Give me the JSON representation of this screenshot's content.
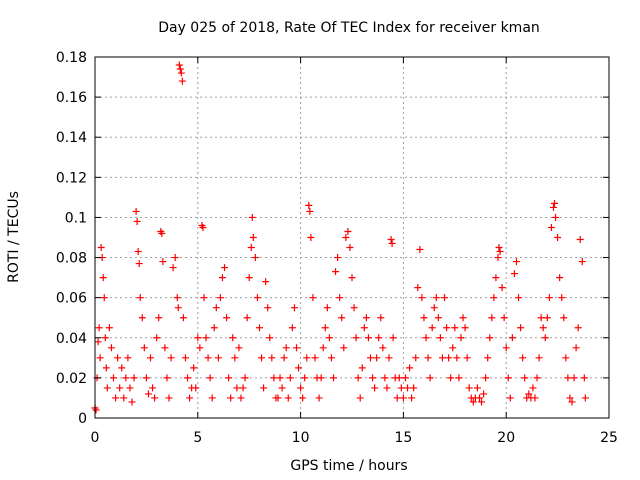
{
  "chart_data": {
    "type": "scatter",
    "title": "Day 025 of 2018, Rate Of TEC Index for receiver kman",
    "xlabel": "GPS time / hours",
    "ylabel": "ROTI / TECUs",
    "xlim": [
      0,
      25
    ],
    "ylim": [
      0,
      0.18
    ],
    "xticks": [
      0,
      5,
      10,
      15,
      20,
      25
    ],
    "xtick_labels": [
      "0",
      "5",
      "10",
      "15",
      "20",
      "25"
    ],
    "yticks": [
      0,
      0.02,
      0.04,
      0.06,
      0.08,
      0.1,
      0.12,
      0.14,
      0.16,
      0.18
    ],
    "ytick_labels": [
      "0",
      "0.02",
      "0.04",
      "0.06",
      "0.08",
      "0.1",
      "0.12",
      "0.14",
      "0.16",
      "0.18"
    ],
    "grid": true,
    "marker": "+",
    "color": "#ff0000",
    "series": [
      {
        "name": "ROTI",
        "points": [
          [
            0.0,
            0.005
          ],
          [
            0.05,
            0.004
          ],
          [
            0.1,
            0.02
          ],
          [
            0.15,
            0.038
          ],
          [
            0.2,
            0.045
          ],
          [
            0.25,
            0.03
          ],
          [
            0.3,
            0.085
          ],
          [
            0.35,
            0.08
          ],
          [
            0.4,
            0.07
          ],
          [
            0.45,
            0.06
          ],
          [
            0.5,
            0.04
          ],
          [
            0.55,
            0.025
          ],
          [
            0.6,
            0.015
          ],
          [
            0.7,
            0.045
          ],
          [
            0.8,
            0.035
          ],
          [
            0.9,
            0.02
          ],
          [
            1.0,
            0.01
          ],
          [
            1.1,
            0.03
          ],
          [
            1.2,
            0.015
          ],
          [
            1.3,
            0.025
          ],
          [
            1.4,
            0.01
          ],
          [
            1.5,
            0.02
          ],
          [
            1.6,
            0.03
          ],
          [
            1.7,
            0.015
          ],
          [
            1.8,
            0.008
          ],
          [
            1.9,
            0.02
          ],
          [
            2.0,
            0.103
          ],
          [
            2.05,
            0.098
          ],
          [
            2.1,
            0.083
          ],
          [
            2.15,
            0.077
          ],
          [
            2.2,
            0.06
          ],
          [
            2.3,
            0.05
          ],
          [
            2.4,
            0.035
          ],
          [
            2.5,
            0.02
          ],
          [
            2.6,
            0.012
          ],
          [
            2.7,
            0.03
          ],
          [
            2.8,
            0.015
          ],
          [
            2.9,
            0.01
          ],
          [
            3.0,
            0.04
          ],
          [
            3.1,
            0.05
          ],
          [
            3.2,
            0.093
          ],
          [
            3.25,
            0.092
          ],
          [
            3.3,
            0.078
          ],
          [
            3.4,
            0.035
          ],
          [
            3.5,
            0.02
          ],
          [
            3.6,
            0.01
          ],
          [
            3.7,
            0.03
          ],
          [
            3.8,
            0.075
          ],
          [
            3.9,
            0.08
          ],
          [
            4.0,
            0.06
          ],
          [
            4.05,
            0.055
          ],
          [
            4.1,
            0.176
          ],
          [
            4.15,
            0.174
          ],
          [
            4.2,
            0.172
          ],
          [
            4.25,
            0.168
          ],
          [
            4.3,
            0.05
          ],
          [
            4.4,
            0.03
          ],
          [
            4.5,
            0.02
          ],
          [
            4.6,
            0.01
          ],
          [
            4.7,
            0.015
          ],
          [
            4.8,
            0.025
          ],
          [
            4.9,
            0.015
          ],
          [
            5.0,
            0.04
          ],
          [
            5.1,
            0.035
          ],
          [
            5.2,
            0.096
          ],
          [
            5.25,
            0.095
          ],
          [
            5.3,
            0.06
          ],
          [
            5.4,
            0.04
          ],
          [
            5.5,
            0.03
          ],
          [
            5.6,
            0.02
          ],
          [
            5.7,
            0.01
          ],
          [
            5.8,
            0.045
          ],
          [
            5.9,
            0.055
          ],
          [
            6.0,
            0.03
          ],
          [
            6.1,
            0.06
          ],
          [
            6.2,
            0.07
          ],
          [
            6.3,
            0.075
          ],
          [
            6.4,
            0.05
          ],
          [
            6.5,
            0.02
          ],
          [
            6.6,
            0.01
          ],
          [
            6.7,
            0.04
          ],
          [
            6.8,
            0.03
          ],
          [
            6.9,
            0.015
          ],
          [
            7.0,
            0.035
          ],
          [
            7.1,
            0.01
          ],
          [
            7.2,
            0.015
          ],
          [
            7.3,
            0.02
          ],
          [
            7.4,
            0.05
          ],
          [
            7.5,
            0.07
          ],
          [
            7.6,
            0.085
          ],
          [
            7.65,
            0.1
          ],
          [
            7.7,
            0.09
          ],
          [
            7.8,
            0.08
          ],
          [
            7.9,
            0.06
          ],
          [
            8.0,
            0.045
          ],
          [
            8.1,
            0.03
          ],
          [
            8.2,
            0.015
          ],
          [
            8.3,
            0.068
          ],
          [
            8.4,
            0.055
          ],
          [
            8.5,
            0.04
          ],
          [
            8.6,
            0.03
          ],
          [
            8.7,
            0.02
          ],
          [
            8.8,
            0.01
          ],
          [
            8.9,
            0.01
          ],
          [
            9.0,
            0.02
          ],
          [
            9.1,
            0.015
          ],
          [
            9.2,
            0.03
          ],
          [
            9.3,
            0.035
          ],
          [
            9.4,
            0.01
          ],
          [
            9.5,
            0.02
          ],
          [
            9.6,
            0.045
          ],
          [
            9.7,
            0.055
          ],
          [
            9.8,
            0.035
          ],
          [
            9.9,
            0.025
          ],
          [
            10.0,
            0.015
          ],
          [
            10.1,
            0.01
          ],
          [
            10.2,
            0.02
          ],
          [
            10.3,
            0.03
          ],
          [
            10.4,
            0.106
          ],
          [
            10.45,
            0.103
          ],
          [
            10.5,
            0.09
          ],
          [
            10.6,
            0.06
          ],
          [
            10.7,
            0.03
          ],
          [
            10.8,
            0.02
          ],
          [
            10.9,
            0.01
          ],
          [
            11.0,
            0.02
          ],
          [
            11.1,
            0.035
          ],
          [
            11.2,
            0.045
          ],
          [
            11.3,
            0.055
          ],
          [
            11.4,
            0.04
          ],
          [
            11.5,
            0.03
          ],
          [
            11.6,
            0.02
          ],
          [
            11.7,
            0.073
          ],
          [
            11.8,
            0.08
          ],
          [
            11.9,
            0.06
          ],
          [
            12.0,
            0.05
          ],
          [
            12.1,
            0.035
          ],
          [
            12.2,
            0.09
          ],
          [
            12.3,
            0.093
          ],
          [
            12.4,
            0.085
          ],
          [
            12.5,
            0.07
          ],
          [
            12.6,
            0.055
          ],
          [
            12.7,
            0.04
          ],
          [
            12.8,
            0.02
          ],
          [
            12.9,
            0.01
          ],
          [
            13.0,
            0.025
          ],
          [
            13.1,
            0.045
          ],
          [
            13.2,
            0.05
          ],
          [
            13.3,
            0.04
          ],
          [
            13.4,
            0.03
          ],
          [
            13.5,
            0.02
          ],
          [
            13.6,
            0.015
          ],
          [
            13.7,
            0.03
          ],
          [
            13.8,
            0.04
          ],
          [
            13.9,
            0.05
          ],
          [
            14.0,
            0.035
          ],
          [
            14.1,
            0.02
          ],
          [
            14.2,
            0.015
          ],
          [
            14.3,
            0.03
          ],
          [
            14.4,
            0.089
          ],
          [
            14.45,
            0.087
          ],
          [
            14.5,
            0.04
          ],
          [
            14.6,
            0.02
          ],
          [
            14.7,
            0.01
          ],
          [
            14.8,
            0.02
          ],
          [
            14.9,
            0.015
          ],
          [
            15.0,
            0.01
          ],
          [
            15.1,
            0.02
          ],
          [
            15.2,
            0.015
          ],
          [
            15.3,
            0.025
          ],
          [
            15.4,
            0.01
          ],
          [
            15.5,
            0.015
          ],
          [
            15.6,
            0.03
          ],
          [
            15.7,
            0.065
          ],
          [
            15.8,
            0.084
          ],
          [
            15.9,
            0.06
          ],
          [
            16.0,
            0.05
          ],
          [
            16.1,
            0.04
          ],
          [
            16.2,
            0.03
          ],
          [
            16.3,
            0.02
          ],
          [
            16.4,
            0.045
          ],
          [
            16.5,
            0.055
          ],
          [
            16.6,
            0.06
          ],
          [
            16.7,
            0.05
          ],
          [
            16.8,
            0.04
          ],
          [
            16.9,
            0.03
          ],
          [
            17.0,
            0.06
          ],
          [
            17.1,
            0.045
          ],
          [
            17.2,
            0.03
          ],
          [
            17.3,
            0.02
          ],
          [
            17.4,
            0.035
          ],
          [
            17.5,
            0.045
          ],
          [
            17.6,
            0.03
          ],
          [
            17.7,
            0.02
          ],
          [
            17.8,
            0.04
          ],
          [
            17.9,
            0.05
          ],
          [
            18.0,
            0.045
          ],
          [
            18.1,
            0.03
          ],
          [
            18.2,
            0.015
          ],
          [
            18.3,
            0.01
          ],
          [
            18.4,
            0.008
          ],
          [
            18.5,
            0.01
          ],
          [
            18.6,
            0.015
          ],
          [
            18.7,
            0.01
          ],
          [
            18.8,
            0.008
          ],
          [
            18.9,
            0.012
          ],
          [
            19.0,
            0.02
          ],
          [
            19.1,
            0.03
          ],
          [
            19.2,
            0.04
          ],
          [
            19.3,
            0.05
          ],
          [
            19.4,
            0.06
          ],
          [
            19.5,
            0.07
          ],
          [
            19.6,
            0.08
          ],
          [
            19.65,
            0.085
          ],
          [
            19.7,
            0.083
          ],
          [
            19.8,
            0.065
          ],
          [
            19.9,
            0.05
          ],
          [
            20.0,
            0.035
          ],
          [
            20.1,
            0.02
          ],
          [
            20.2,
            0.01
          ],
          [
            20.3,
            0.04
          ],
          [
            20.4,
            0.072
          ],
          [
            20.5,
            0.078
          ],
          [
            20.6,
            0.06
          ],
          [
            20.7,
            0.045
          ],
          [
            20.8,
            0.03
          ],
          [
            20.9,
            0.02
          ],
          [
            21.0,
            0.01
          ],
          [
            21.1,
            0.012
          ],
          [
            21.2,
            0.01
          ],
          [
            21.3,
            0.015
          ],
          [
            21.4,
            0.01
          ],
          [
            21.5,
            0.02
          ],
          [
            21.6,
            0.03
          ],
          [
            21.7,
            0.05
          ],
          [
            21.8,
            0.045
          ],
          [
            21.9,
            0.04
          ],
          [
            22.0,
            0.05
          ],
          [
            22.1,
            0.06
          ],
          [
            22.2,
            0.095
          ],
          [
            22.3,
            0.105
          ],
          [
            22.35,
            0.107
          ],
          [
            22.4,
            0.1
          ],
          [
            22.5,
            0.09
          ],
          [
            22.6,
            0.07
          ],
          [
            22.7,
            0.06
          ],
          [
            22.8,
            0.05
          ],
          [
            22.9,
            0.03
          ],
          [
            23.0,
            0.02
          ],
          [
            23.1,
            0.01
          ],
          [
            23.2,
            0.008
          ],
          [
            23.3,
            0.02
          ],
          [
            23.4,
            0.035
          ],
          [
            23.5,
            0.045
          ],
          [
            23.6,
            0.089
          ],
          [
            23.7,
            0.078
          ],
          [
            23.8,
            0.02
          ],
          [
            23.85,
            0.01
          ]
        ]
      }
    ]
  }
}
